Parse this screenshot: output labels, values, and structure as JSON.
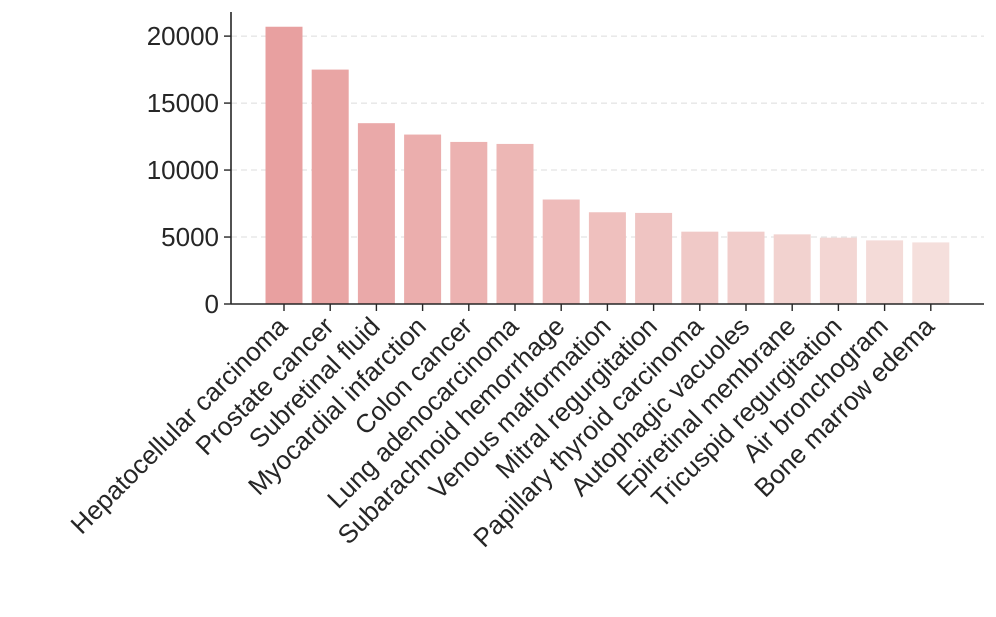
{
  "chart_data": {
    "type": "bar",
    "title": "",
    "xlabel": "",
    "ylabel": "",
    "categories": [
      "Hepatocellular carcinoma",
      "Prostate cancer",
      "Subretinal fluid",
      "Myocardial infarction",
      "Colon cancer",
      "Lung adenocarcinoma",
      "Subarachnoid hemorrhage",
      "Venous malformation",
      "Mitral regurgitation",
      "Papillary thyroid carcinoma",
      "Autophagic vacuoles",
      "Epiretinal membrane",
      "Tricuspid regurgitation",
      "Air bronchogram",
      "Bone marrow edema"
    ],
    "values": [
      20700,
      17500,
      13500,
      12650,
      12100,
      11950,
      7800,
      6850,
      6800,
      5400,
      5400,
      5200,
      4950,
      4750,
      4600
    ],
    "ylim": [
      0,
      21800
    ],
    "yticks": [
      0,
      5000,
      10000,
      15000,
      20000
    ],
    "grid": true,
    "bar_color_start": "#e8a0a0",
    "bar_color_end": "#f5dfdc"
  }
}
